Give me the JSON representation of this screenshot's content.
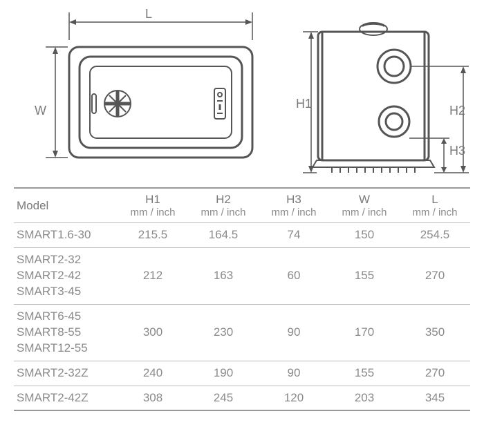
{
  "diagram": {
    "stroke": "#555555",
    "stroke_width": 2,
    "label_color": "#7a7a7a",
    "label_fontsize": 18,
    "dim_labels": {
      "W": "W",
      "L": "L",
      "H1": "H1",
      "H2": "H2",
      "H3": "H3"
    }
  },
  "table": {
    "header_color": "#7a7a7a",
    "body_color": "#8a8a8a",
    "border_color_strong": "#999999",
    "border_color": "#bbbbbb",
    "fontsize": 17,
    "columns": [
      {
        "key": "model",
        "label": "Model",
        "unit": ""
      },
      {
        "key": "h1",
        "label": "H1",
        "unit": "mm / inch"
      },
      {
        "key": "h2",
        "label": "H2",
        "unit": "mm / inch"
      },
      {
        "key": "h3",
        "label": "H3",
        "unit": "mm / inch"
      },
      {
        "key": "w",
        "label": "W",
        "unit": "mm / inch"
      },
      {
        "key": "l",
        "label": "L",
        "unit": "mm / inch"
      }
    ],
    "rows": [
      {
        "models": [
          "SMART1.6-30"
        ],
        "h1": "215.5",
        "h2": "164.5",
        "h3": "74",
        "w": "150",
        "l": "254.5"
      },
      {
        "models": [
          "SMART2-32",
          "SMART2-42",
          "SMART3-45"
        ],
        "h1": "212",
        "h2": "163",
        "h3": "60",
        "w": "155",
        "l": "270"
      },
      {
        "models": [
          "SMART6-45",
          "SMART8-55",
          "SMART12-55"
        ],
        "h1": "300",
        "h2": "230",
        "h3": "90",
        "w": "170",
        "l": "350"
      },
      {
        "models": [
          "SMART2-32Z"
        ],
        "h1": "240",
        "h2": "190",
        "h3": "90",
        "w": "155",
        "l": "270"
      },
      {
        "models": [
          "SMART2-42Z"
        ],
        "h1": "308",
        "h2": "245",
        "h3": "120",
        "w": "203",
        "l": "345"
      }
    ]
  }
}
